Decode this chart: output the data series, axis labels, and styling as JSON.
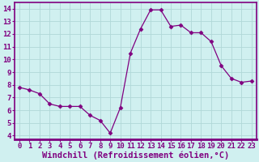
{
  "x": [
    0,
    1,
    2,
    3,
    4,
    5,
    6,
    7,
    8,
    9,
    10,
    11,
    12,
    13,
    14,
    15,
    16,
    17,
    18,
    19,
    20,
    21,
    22,
    23
  ],
  "y": [
    7.8,
    7.6,
    7.3,
    6.5,
    6.3,
    6.3,
    6.3,
    5.6,
    5.2,
    4.2,
    6.2,
    10.5,
    12.4,
    13.9,
    13.9,
    12.6,
    12.7,
    12.1,
    12.1,
    11.4,
    9.5,
    8.5,
    8.2,
    8.3
  ],
  "line_color": "#800080",
  "marker": "D",
  "marker_size": 2.5,
  "bg_color": "#d0f0f0",
  "grid_color": "#b0d8d8",
  "xlabel": "Windchill (Refroidissement éolien,°C)",
  "xlabel_fontsize": 7.5,
  "xtick_labels": [
    "0",
    "1",
    "2",
    "3",
    "4",
    "5",
    "6",
    "7",
    "8",
    "9",
    "10",
    "11",
    "12",
    "13",
    "14",
    "15",
    "16",
    "17",
    "18",
    "19",
    "20",
    "21",
    "22",
    "23"
  ],
  "ytick_labels": [
    "4",
    "5",
    "6",
    "7",
    "8",
    "9",
    "10",
    "11",
    "12",
    "13",
    "14"
  ],
  "ylim": [
    3.7,
    14.5
  ],
  "xlim": [
    -0.5,
    23.5
  ],
  "tick_color": "#800080",
  "tick_fontsize": 6.5,
  "border_color": "#800080"
}
